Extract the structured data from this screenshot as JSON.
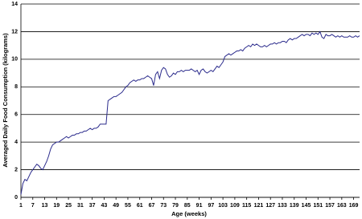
{
  "chart_data": {
    "type": "line",
    "x_label": "Age (weeks)",
    "y_label": "Averaged Daily Food Consumption (kilograms)",
    "x": [
      1,
      2,
      3,
      4,
      5,
      6,
      7,
      8,
      9,
      10,
      11,
      12,
      13,
      14,
      15,
      16,
      17,
      18,
      19,
      20,
      21,
      22,
      23,
      24,
      25,
      26,
      27,
      28,
      29,
      30,
      31,
      32,
      33,
      34,
      35,
      36,
      37,
      38,
      39,
      40,
      41,
      42,
      43,
      44,
      45,
      46,
      47,
      48,
      49,
      50,
      51,
      52,
      53,
      54,
      55,
      56,
      57,
      58,
      59,
      60,
      61,
      62,
      63,
      64,
      65,
      66,
      67,
      68,
      69,
      70,
      71,
      72,
      73,
      74,
      75,
      76,
      77,
      78,
      79,
      80,
      81,
      82,
      83,
      84,
      85,
      86,
      87,
      88,
      89,
      90,
      91,
      92,
      93,
      94,
      95,
      96,
      97,
      98,
      99,
      100,
      101,
      102,
      103,
      104,
      105,
      106,
      107,
      108,
      109,
      110,
      111,
      112,
      113,
      114,
      115,
      116,
      117,
      118,
      119,
      120,
      121,
      122,
      123,
      124,
      125,
      126,
      127,
      128,
      129,
      130,
      131,
      132,
      133,
      134,
      135,
      136,
      137,
      138,
      139,
      140,
      141,
      142,
      143,
      144,
      145,
      146,
      147,
      148,
      149,
      150,
      151,
      152,
      153,
      154,
      155,
      156,
      157,
      158,
      159,
      160,
      161,
      162,
      163,
      164,
      165,
      166,
      167,
      168,
      169,
      170,
      171,
      172
    ],
    "series": [
      {
        "name": "Food consumption",
        "color": "#2b2b8c",
        "values": [
          0.2,
          1.0,
          1.3,
          1.2,
          1.5,
          1.8,
          2.0,
          2.2,
          2.4,
          2.3,
          2.1,
          2.0,
          2.3,
          2.6,
          3.0,
          3.5,
          3.8,
          3.9,
          4.0,
          4.0,
          4.1,
          4.2,
          4.3,
          4.4,
          4.3,
          4.4,
          4.5,
          4.5,
          4.6,
          4.6,
          4.7,
          4.7,
          4.8,
          4.8,
          4.9,
          5.0,
          4.9,
          5.0,
          5.0,
          5.1,
          5.3,
          5.3,
          5.3,
          5.3,
          7.0,
          7.1,
          7.2,
          7.3,
          7.3,
          7.4,
          7.5,
          7.6,
          7.8,
          8.0,
          8.1,
          8.3,
          8.4,
          8.5,
          8.4,
          8.5,
          8.5,
          8.6,
          8.6,
          8.7,
          8.8,
          8.7,
          8.6,
          8.1,
          8.9,
          9.1,
          8.6,
          9.2,
          9.4,
          9.3,
          8.9,
          8.7,
          8.8,
          9.0,
          8.9,
          9.1,
          9.1,
          9.2,
          9.1,
          9.2,
          9.2,
          9.2,
          9.3,
          9.2,
          9.1,
          9.2,
          8.9,
          9.2,
          9.3,
          9.1,
          9.0,
          9.1,
          9.2,
          9.1,
          9.3,
          9.5,
          9.4,
          9.6,
          9.8,
          10.2,
          10.3,
          10.4,
          10.3,
          10.4,
          10.5,
          10.6,
          10.6,
          10.7,
          10.6,
          10.8,
          10.9,
          11.0,
          10.9,
          11.1,
          11.0,
          11.1,
          11.0,
          10.9,
          10.9,
          11.0,
          10.9,
          11.0,
          11.1,
          11.1,
          11.2,
          11.1,
          11.2,
          11.2,
          11.3,
          11.3,
          11.2,
          11.4,
          11.5,
          11.4,
          11.5,
          11.5,
          11.6,
          11.7,
          11.8,
          11.7,
          11.8,
          11.8,
          11.7,
          11.9,
          11.8,
          11.9,
          11.8,
          12.0,
          11.6,
          11.5,
          11.8,
          11.7,
          11.7,
          11.8,
          11.7,
          11.6,
          11.7,
          11.6,
          11.7,
          11.6,
          11.6,
          11.6,
          11.7,
          11.6,
          11.6,
          11.7,
          11.6,
          11.7
        ]
      }
    ],
    "xlim": [
      1,
      172
    ],
    "xticks": [
      1,
      7,
      13,
      19,
      25,
      31,
      37,
      43,
      49,
      55,
      61,
      67,
      73,
      79,
      85,
      91,
      97,
      103,
      109,
      115,
      121,
      127,
      133,
      139,
      145,
      151,
      157,
      163,
      169
    ],
    "ylim": [
      0,
      14
    ],
    "yticks": [
      0,
      2,
      4,
      6,
      8,
      10,
      12,
      14
    ],
    "grid": true
  }
}
